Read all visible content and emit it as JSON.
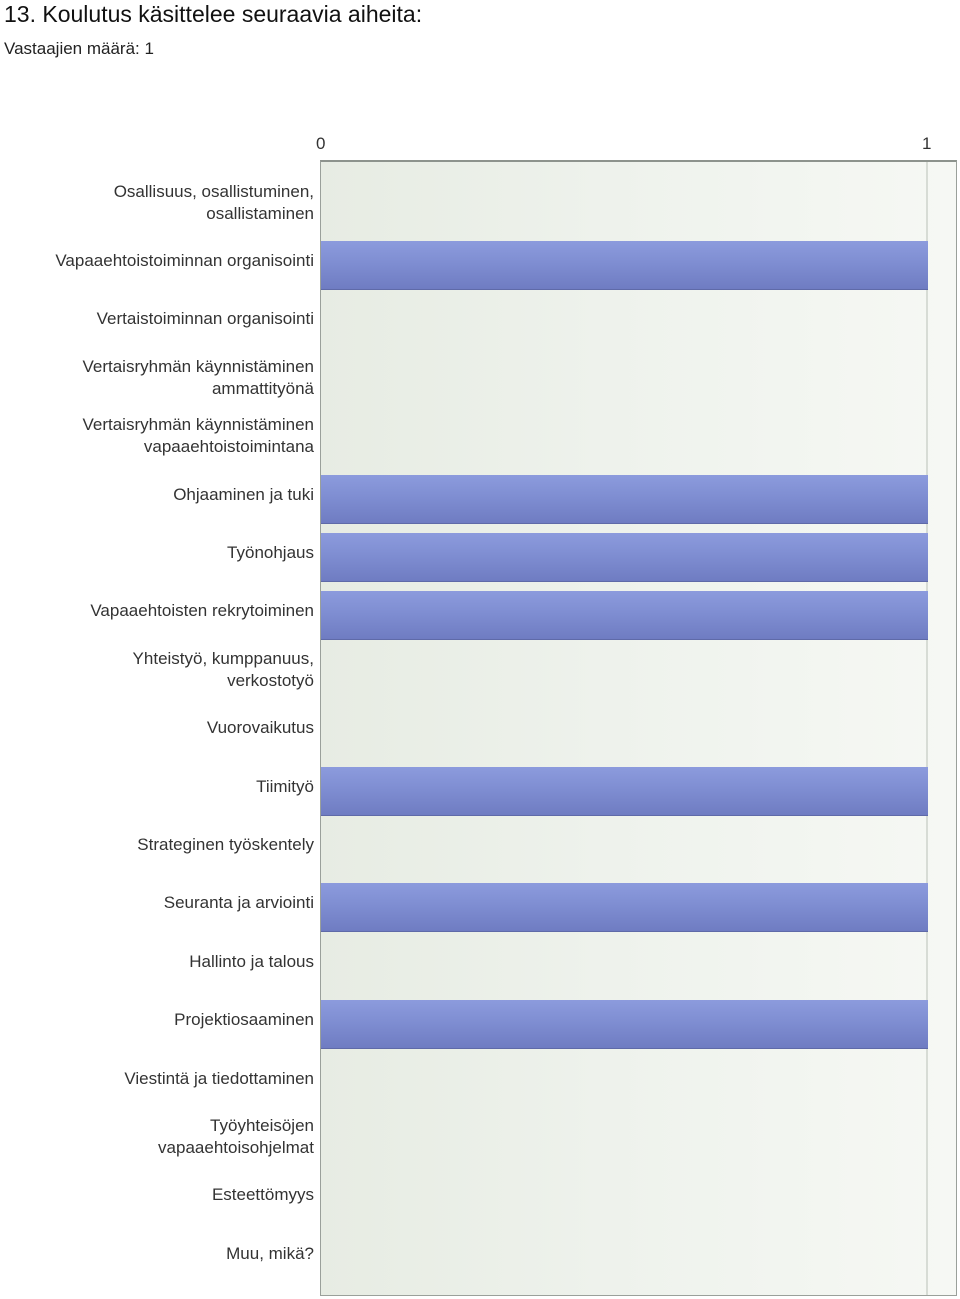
{
  "chart_data": {
    "type": "bar",
    "orientation": "horizontal",
    "title": "13. Koulutus käsittelee seuraavia aiheita:",
    "subtitle": "Vastaajien määrä: 1",
    "xlim": [
      0,
      1
    ],
    "xticks": [
      "0",
      "1"
    ],
    "grid": true,
    "categories": [
      "Osallisuus, osallistuminen,\nosallistaminen",
      "Vapaaehtoistoiminnan organisointi",
      "Vertaistoiminnan organisointi",
      "Vertaisryhmän käynnistäminen\nammattityönä",
      "Vertaisryhmän käynnistäminen\nvapaaehtoistoimintana",
      "Ohjaaminen ja tuki",
      "Työnohjaus",
      "Vapaaehtoisten rekrytoiminen",
      "Yhteistyö, kumppanuus,\nverkostotyö",
      "Vuorovaikutus",
      "Tiimityö",
      "Strateginen työskentely",
      "Seuranta ja arviointi",
      "Hallinto ja talous",
      "Projektiosaaminen",
      "Viestintä ja tiedottaminen",
      "Työyhteisöjen\nvapaaehtoisohjelmat",
      "Esteettömyys",
      "Muu, mikä?"
    ],
    "values": [
      0,
      1,
      0,
      0,
      0,
      1,
      1,
      1,
      0,
      0,
      1,
      0,
      1,
      0,
      1,
      0,
      0,
      0,
      0
    ],
    "bar_color": "#7f8ed2",
    "plot_background": "#eef2ec"
  }
}
